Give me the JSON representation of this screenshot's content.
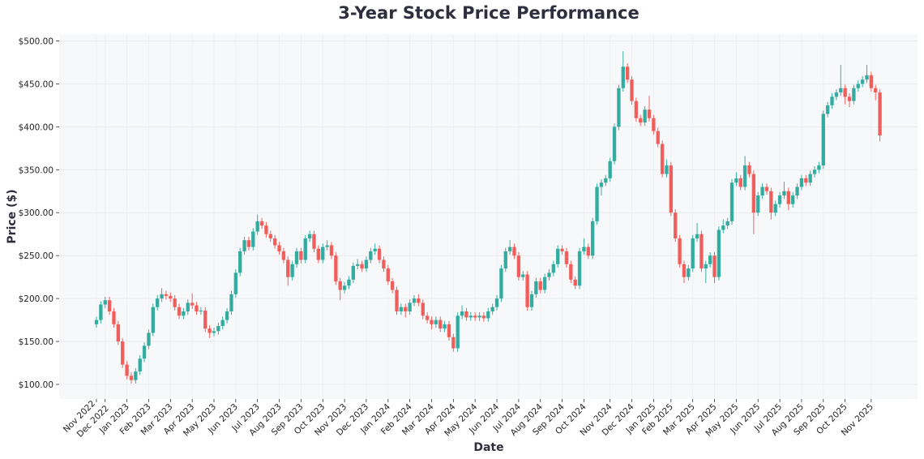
{
  "chart_data": {
    "type": "candlestick",
    "title": "3-Year Stock Price Performance",
    "xlabel": "Date",
    "ylabel": "Price ($)",
    "ylim": [
      83,
      508
    ],
    "y_ticks": [
      100,
      150,
      200,
      250,
      300,
      350,
      400,
      450,
      500
    ],
    "y_tick_labels": [
      "$100.00",
      "$150.00",
      "$200.00",
      "$250.00",
      "$300.00",
      "$350.00",
      "$400.00",
      "$450.00",
      "$500.00"
    ],
    "grid": true,
    "colors": {
      "up": "#26a69a",
      "down": "#ef5350",
      "background": "#f7f8fa",
      "title": "#2e2e3e"
    },
    "x_ticks": [
      {
        "label": "Nov 2022",
        "index": 0
      },
      {
        "label": "Dec 2022",
        "index": 2
      },
      {
        "label": "Jan 2023",
        "index": 7
      },
      {
        "label": "Feb 2023",
        "index": 12
      },
      {
        "label": "Mar 2023",
        "index": 17
      },
      {
        "label": "Apr 2023",
        "index": 22
      },
      {
        "label": "May 2023",
        "index": 27
      },
      {
        "label": "Jun 2023",
        "index": 32
      },
      {
        "label": "Jul 2023",
        "index": 37
      },
      {
        "label": "Aug 2023",
        "index": 42
      },
      {
        "label": "Sep 2023",
        "index": 47
      },
      {
        "label": "Oct 2023",
        "index": 52
      },
      {
        "label": "Nov 2023",
        "index": 57
      },
      {
        "label": "Dec 2023",
        "index": 62
      },
      {
        "label": "Jan 2024",
        "index": 67
      },
      {
        "label": "Feb 2024",
        "index": 72
      },
      {
        "label": "Mar 2024",
        "index": 77
      },
      {
        "label": "Apr 2024",
        "index": 82
      },
      {
        "label": "May 2024",
        "index": 87
      },
      {
        "label": "Jun 2024",
        "index": 92
      },
      {
        "label": "Jul 2024",
        "index": 97
      },
      {
        "label": "Aug 2024",
        "index": 102
      },
      {
        "label": "Sep 2024",
        "index": 107
      },
      {
        "label": "Oct 2024",
        "index": 112
      },
      {
        "label": "Nov 2024",
        "index": 118
      },
      {
        "label": "Dec 2024",
        "index": 123
      },
      {
        "label": "Jan 2025",
        "index": 128
      },
      {
        "label": "Feb 2025",
        "index": 132
      },
      {
        "label": "Mar 2025",
        "index": 137
      },
      {
        "label": "Apr 2025",
        "index": 142
      },
      {
        "label": "May 2025",
        "index": 147
      },
      {
        "label": "Jun 2025",
        "index": 152
      },
      {
        "label": "Jul 2025",
        "index": 157
      },
      {
        "label": "Aug 2025",
        "index": 162
      },
      {
        "label": "Sep 2025",
        "index": 167
      },
      {
        "label": "Oct 2025",
        "index": 172
      },
      {
        "label": "Nov 2025",
        "index": 178
      }
    ],
    "ohlc_fields": [
      "open",
      "high",
      "low",
      "close"
    ],
    "ohlc": [
      [
        170,
        179,
        166,
        175
      ],
      [
        175,
        197,
        171,
        193
      ],
      [
        193,
        202,
        189,
        198
      ],
      [
        198,
        202,
        181,
        185
      ],
      [
        185,
        189,
        166,
        170
      ],
      [
        170,
        174,
        146,
        150
      ],
      [
        150,
        154,
        119,
        123
      ],
      [
        123,
        127,
        106,
        110
      ],
      [
        110,
        114,
        101,
        105
      ],
      [
        105,
        119,
        101,
        115
      ],
      [
        115,
        134,
        111,
        130
      ],
      [
        130,
        149,
        126,
        145
      ],
      [
        145,
        164,
        141,
        160
      ],
      [
        160,
        194,
        156,
        190
      ],
      [
        190,
        204,
        186,
        200
      ],
      [
        200,
        212,
        196,
        205
      ],
      [
        205,
        209,
        199,
        203
      ],
      [
        203,
        207,
        196,
        200
      ],
      [
        200,
        204,
        186,
        190
      ],
      [
        190,
        194,
        176,
        180
      ],
      [
        180,
        189,
        176,
        185
      ],
      [
        185,
        199,
        181,
        195
      ],
      [
        195,
        206,
        188,
        192
      ],
      [
        192,
        196,
        181,
        185
      ],
      [
        185,
        190,
        181,
        186
      ],
      [
        186,
        190,
        161,
        165
      ],
      [
        165,
        169,
        154,
        160
      ],
      [
        160,
        166,
        156,
        162
      ],
      [
        162,
        172,
        158,
        168
      ],
      [
        168,
        179,
        164,
        175
      ],
      [
        175,
        189,
        171,
        185
      ],
      [
        185,
        209,
        181,
        205
      ],
      [
        205,
        234,
        201,
        230
      ],
      [
        230,
        259,
        226,
        255
      ],
      [
        255,
        272,
        251,
        268
      ],
      [
        268,
        272,
        256,
        260
      ],
      [
        260,
        282,
        256,
        278
      ],
      [
        278,
        298,
        274,
        290
      ],
      [
        290,
        294,
        281,
        285
      ],
      [
        285,
        289,
        271,
        275
      ],
      [
        275,
        279,
        266,
        270
      ],
      [
        270,
        274,
        258,
        262
      ],
      [
        262,
        266,
        251,
        255
      ],
      [
        255,
        259,
        241,
        245
      ],
      [
        245,
        249,
        215,
        225
      ],
      [
        225,
        244,
        221,
        240
      ],
      [
        240,
        259,
        236,
        255
      ],
      [
        255,
        259,
        241,
        245
      ],
      [
        245,
        274,
        241,
        270
      ],
      [
        270,
        279,
        266,
        275
      ],
      [
        275,
        279,
        254,
        258
      ],
      [
        258,
        262,
        241,
        245
      ],
      [
        245,
        264,
        241,
        260
      ],
      [
        260,
        268,
        256,
        262
      ],
      [
        262,
        266,
        246,
        250
      ],
      [
        250,
        254,
        216,
        220
      ],
      [
        220,
        224,
        198,
        210
      ],
      [
        210,
        219,
        206,
        215
      ],
      [
        215,
        226,
        211,
        222
      ],
      [
        222,
        242,
        218,
        238
      ],
      [
        238,
        246,
        234,
        240
      ],
      [
        240,
        244,
        231,
        235
      ],
      [
        235,
        249,
        231,
        245
      ],
      [
        245,
        259,
        241,
        255
      ],
      [
        255,
        264,
        251,
        258
      ],
      [
        258,
        262,
        241,
        245
      ],
      [
        245,
        249,
        231,
        235
      ],
      [
        235,
        239,
        216,
        220
      ],
      [
        220,
        224,
        206,
        210
      ],
      [
        210,
        214,
        181,
        185
      ],
      [
        185,
        194,
        181,
        190
      ],
      [
        190,
        194,
        178,
        185
      ],
      [
        185,
        199,
        181,
        195
      ],
      [
        195,
        204,
        191,
        200
      ],
      [
        200,
        205,
        191,
        195
      ],
      [
        195,
        199,
        176,
        180
      ],
      [
        180,
        184,
        171,
        175
      ],
      [
        175,
        179,
        164,
        170
      ],
      [
        170,
        179,
        166,
        175
      ],
      [
        175,
        179,
        161,
        165
      ],
      [
        165,
        174,
        161,
        170
      ],
      [
        170,
        174,
        151,
        155
      ],
      [
        155,
        159,
        138,
        142
      ],
      [
        142,
        184,
        138,
        180
      ],
      [
        180,
        192,
        176,
        185
      ],
      [
        185,
        189,
        174,
        178
      ],
      [
        178,
        184,
        174,
        180
      ],
      [
        180,
        184,
        174,
        178
      ],
      [
        178,
        184,
        174,
        180
      ],
      [
        180,
        184,
        173,
        177
      ],
      [
        177,
        189,
        173,
        185
      ],
      [
        185,
        194,
        181,
        190
      ],
      [
        190,
        204,
        186,
        200
      ],
      [
        200,
        239,
        196,
        235
      ],
      [
        235,
        259,
        231,
        255
      ],
      [
        255,
        268,
        251,
        260
      ],
      [
        260,
        264,
        246,
        250
      ],
      [
        250,
        254,
        221,
        225
      ],
      [
        225,
        232,
        221,
        228
      ],
      [
        228,
        232,
        186,
        190
      ],
      [
        190,
        209,
        186,
        205
      ],
      [
        205,
        224,
        201,
        220
      ],
      [
        220,
        224,
        206,
        210
      ],
      [
        210,
        229,
        206,
        225
      ],
      [
        225,
        234,
        221,
        230
      ],
      [
        230,
        244,
        226,
        240
      ],
      [
        240,
        262,
        236,
        258
      ],
      [
        258,
        262,
        251,
        255
      ],
      [
        255,
        259,
        236,
        240
      ],
      [
        240,
        244,
        218,
        222
      ],
      [
        222,
        226,
        211,
        215
      ],
      [
        215,
        259,
        211,
        255
      ],
      [
        255,
        270,
        251,
        260
      ],
      [
        260,
        264,
        246,
        250
      ],
      [
        250,
        294,
        246,
        290
      ],
      [
        290,
        334,
        286,
        330
      ],
      [
        330,
        339,
        320,
        335
      ],
      [
        335,
        344,
        331,
        340
      ],
      [
        340,
        364,
        336,
        360
      ],
      [
        360,
        404,
        356,
        400
      ],
      [
        400,
        449,
        396,
        445
      ],
      [
        445,
        488,
        441,
        470
      ],
      [
        470,
        474,
        451,
        455
      ],
      [
        455,
        459,
        426,
        430
      ],
      [
        430,
        434,
        406,
        410
      ],
      [
        410,
        414,
        401,
        405
      ],
      [
        405,
        424,
        401,
        420
      ],
      [
        420,
        436,
        406,
        410
      ],
      [
        410,
        414,
        391,
        395
      ],
      [
        395,
        399,
        376,
        380
      ],
      [
        380,
        384,
        341,
        345
      ],
      [
        345,
        362,
        341,
        355
      ],
      [
        355,
        359,
        296,
        300
      ],
      [
        300,
        304,
        266,
        270
      ],
      [
        270,
        274,
        236,
        240
      ],
      [
        240,
        244,
        218,
        225
      ],
      [
        225,
        239,
        221,
        235
      ],
      [
        235,
        274,
        231,
        270
      ],
      [
        270,
        288,
        266,
        275
      ],
      [
        275,
        279,
        231,
        235
      ],
      [
        235,
        244,
        218,
        240
      ],
      [
        240,
        254,
        236,
        250
      ],
      [
        250,
        254,
        218,
        225
      ],
      [
        225,
        284,
        221,
        280
      ],
      [
        280,
        292,
        276,
        285
      ],
      [
        285,
        294,
        281,
        290
      ],
      [
        290,
        339,
        286,
        335
      ],
      [
        335,
        347,
        331,
        340
      ],
      [
        340,
        344,
        326,
        330
      ],
      [
        330,
        366,
        326,
        355
      ],
      [
        355,
        359,
        341,
        345
      ],
      [
        345,
        349,
        275,
        300
      ],
      [
        300,
        324,
        296,
        320
      ],
      [
        320,
        334,
        316,
        330
      ],
      [
        330,
        334,
        321,
        325
      ],
      [
        325,
        329,
        292,
        300
      ],
      [
        300,
        314,
        296,
        310
      ],
      [
        310,
        324,
        306,
        320
      ],
      [
        320,
        336,
        316,
        325
      ],
      [
        325,
        329,
        303,
        310
      ],
      [
        310,
        324,
        306,
        320
      ],
      [
        320,
        334,
        316,
        330
      ],
      [
        330,
        344,
        326,
        340
      ],
      [
        340,
        344,
        331,
        335
      ],
      [
        335,
        349,
        331,
        345
      ],
      [
        345,
        354,
        341,
        350
      ],
      [
        350,
        359,
        346,
        355
      ],
      [
        355,
        419,
        351,
        415
      ],
      [
        415,
        429,
        411,
        425
      ],
      [
        425,
        439,
        421,
        435
      ],
      [
        435,
        444,
        431,
        440
      ],
      [
        440,
        472,
        436,
        445
      ],
      [
        445,
        449,
        426,
        435
      ],
      [
        435,
        439,
        423,
        430
      ],
      [
        430,
        449,
        426,
        445
      ],
      [
        445,
        454,
        441,
        450
      ],
      [
        450,
        459,
        446,
        455
      ],
      [
        455,
        472,
        451,
        460
      ],
      [
        460,
        464,
        441,
        445
      ],
      [
        445,
        449,
        431,
        440
      ],
      [
        440,
        444,
        383,
        390
      ]
    ]
  }
}
